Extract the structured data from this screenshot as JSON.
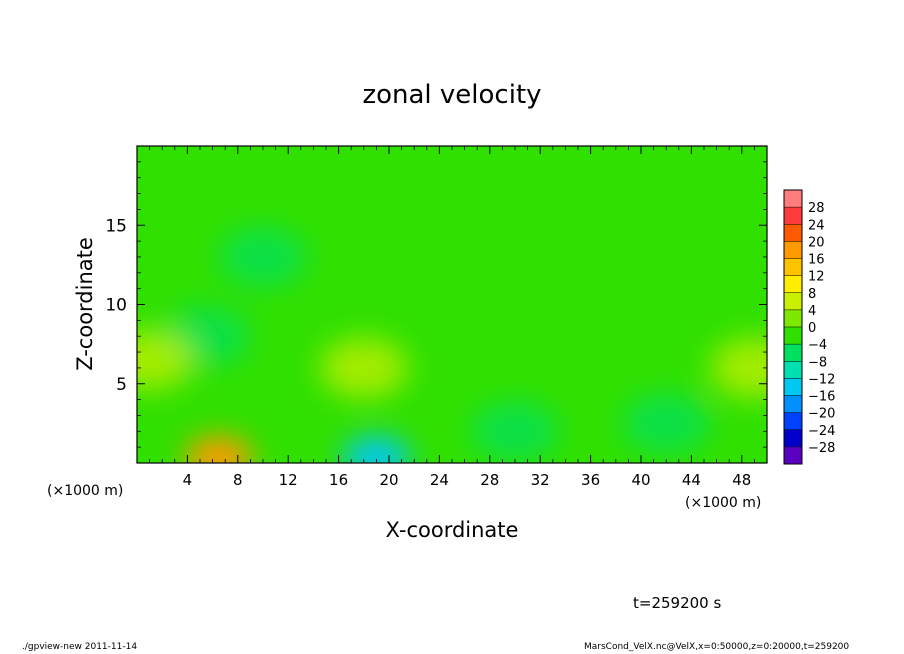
{
  "chart_data": {
    "type": "heatmap",
    "title": "zonal velocity",
    "xlabel": "X-coordinate",
    "ylabel": "Z-coordinate",
    "x_unit": "(×1000 m)",
    "y_unit": "(×1000 m)",
    "xlim": [
      0,
      50
    ],
    "ylim": [
      0,
      20
    ],
    "x_ticks": [
      4,
      8,
      12,
      16,
      20,
      24,
      28,
      32,
      36,
      40,
      44,
      48
    ],
    "y_ticks": [
      5,
      10,
      15
    ],
    "colorbar": {
      "levels": [
        28,
        24,
        20,
        16,
        12,
        8,
        4,
        0,
        -4,
        -8,
        -12,
        -16,
        -20,
        -24,
        -28
      ],
      "range": [
        -30,
        30
      ],
      "colors": [
        "#ff7d7d",
        "#ff3c3c",
        "#ff5a00",
        "#ff9a00",
        "#ffc400",
        "#ffee00",
        "#c8f000",
        "#7ee800",
        "#30e000",
        "#00e060",
        "#00e0b0",
        "#00c8f0",
        "#0090ff",
        "#0040ff",
        "#0000c8",
        "#5a00c0"
      ]
    },
    "features": [
      {
        "x": 6.5,
        "z": 0.3,
        "value": 16
      },
      {
        "x": 19,
        "z": 0.3,
        "value": -12
      },
      {
        "x": 5.5,
        "z": 8,
        "value": -6
      },
      {
        "x": 18,
        "z": 6,
        "value": 6
      },
      {
        "x": 10,
        "z": 13,
        "value": -4
      },
      {
        "x": 30,
        "z": 2,
        "value": -6
      },
      {
        "x": 42,
        "z": 2.5,
        "value": -7
      },
      {
        "x": 49,
        "z": 6,
        "value": 7
      },
      {
        "x": 1,
        "z": 6.5,
        "value": 6
      }
    ]
  },
  "time": "t=259200 s",
  "footer": {
    "left": "./gpview-new  2011-11-14",
    "right": "MarsCond_VelX.nc@VelX,x=0:50000,z=0:20000,t=259200"
  }
}
